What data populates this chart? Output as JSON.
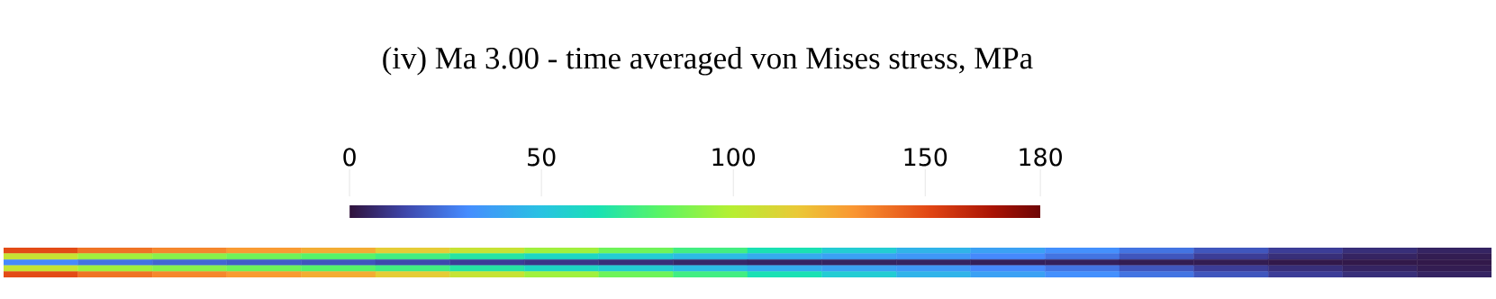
{
  "chart_data": {
    "type": "heatmap",
    "title": "(iv) Ma 3.00 - time averaged von Mises stress, MPa",
    "categories": [
      null,
      null,
      null,
      null,
      null,
      null,
      null,
      null,
      null,
      null,
      null,
      null,
      null,
      null,
      null,
      null,
      null,
      null,
      null,
      null
    ],
    "y_categories": [
      null,
      null,
      null,
      null,
      null
    ],
    "cells": [
      [
        150,
        140,
        135,
        130,
        125,
        115,
        105,
        95,
        85,
        75,
        65,
        55,
        45,
        38,
        32,
        25,
        18,
        12,
        8,
        5
      ],
      [
        105,
        95,
        90,
        85,
        80,
        75,
        68,
        60,
        55,
        48,
        42,
        38,
        35,
        30,
        25,
        18,
        12,
        8,
        5,
        3
      ],
      [
        30,
        25,
        22,
        20,
        18,
        15,
        12,
        10,
        8,
        6,
        5,
        5,
        5,
        4,
        4,
        3,
        3,
        2,
        2,
        2
      ],
      [
        105,
        95,
        90,
        85,
        80,
        75,
        68,
        60,
        55,
        48,
        42,
        38,
        35,
        30,
        25,
        18,
        12,
        8,
        5,
        3
      ],
      [
        150,
        140,
        135,
        130,
        125,
        115,
        105,
        95,
        85,
        75,
        65,
        55,
        45,
        38,
        32,
        25,
        18,
        12,
        8,
        5
      ]
    ],
    "clim": [
      0,
      180
    ],
    "cticks": [
      0,
      50,
      100,
      150,
      180
    ]
  }
}
